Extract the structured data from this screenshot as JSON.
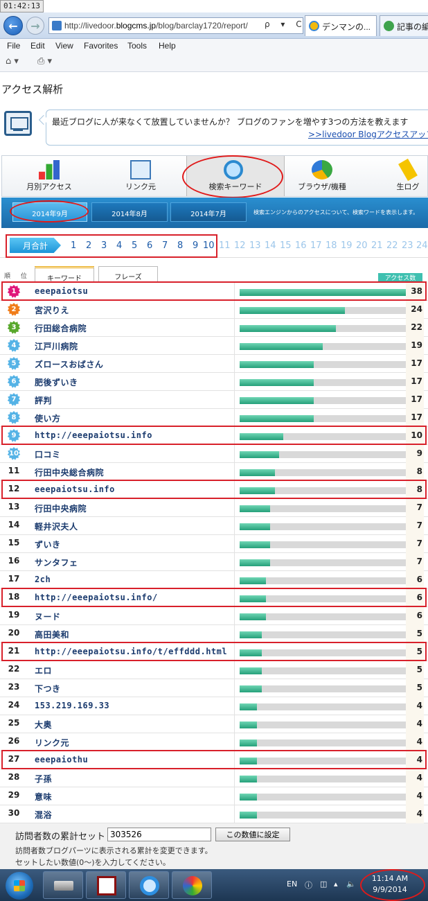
{
  "screen": {
    "clock_overlay": "01:42:13"
  },
  "browser": {
    "url_prefix": "http://livedoor.",
    "url_domain": "blogcms.jp",
    "url_path": "/blog/barclay1720/report/",
    "url_tools": "ρ ▾ C",
    "tabs": [
      "デンマンの...",
      "記事の編"
    ],
    "menu": [
      "File",
      "Edit",
      "View",
      "Favorites",
      "Tools",
      "Help"
    ],
    "toolbar": [
      "home-icon",
      "print-icon"
    ]
  },
  "page": {
    "title": "アクセス解析",
    "promo": {
      "line1": "最近ブログに人が来なくて放置していませんか？ ブログのファンを増やす3つの方法を教えます",
      "link": ">>livedoor Blogアクセスアップ到"
    },
    "nav_tabs": [
      "月別アクセス",
      "リンク元",
      "検索キーワード",
      "ブラウザ/機種",
      "生ログ"
    ],
    "months": [
      "2014年9月",
      "2014年8月",
      "2014年7月"
    ],
    "months_note": "検索エンジンからのアクセスについて、検索ワードを表示します。",
    "day_sum_label": "月合計",
    "days": [
      "1",
      "2",
      "3",
      "4",
      "5",
      "6",
      "7",
      "8",
      "9",
      "10",
      "11",
      "12",
      "13",
      "14",
      "15",
      "16",
      "17",
      "18",
      "19",
      "20",
      "21",
      "22",
      "23",
      "24"
    ],
    "rank_header": "順 位",
    "keyword_tab": "キーワード",
    "phrase_tab": "フレーズ",
    "access_header": "アクセス数",
    "counter": {
      "label": "訪問者数の累計セット",
      "value": "303526",
      "button": "この数値に設定",
      "hint1": "訪問者数ブログパーツに表示される累計を変更できます。",
      "hint2": "セットしたい数値(0〜)を入力してください。"
    }
  },
  "table": {
    "max": 38,
    "rows": [
      {
        "rank": "1",
        "kw": "eeepaiotsu",
        "n": 38,
        "hl": true,
        "medal": "#e0177a"
      },
      {
        "rank": "2",
        "kw": "宮沢りえ",
        "n": 24,
        "medal": "#f07d1a"
      },
      {
        "rank": "3",
        "kw": "行田総合病院",
        "n": 22,
        "medal": "#58a82c"
      },
      {
        "rank": "4",
        "kw": "江戸川病院",
        "n": 19,
        "medal": "#55b3e6"
      },
      {
        "rank": "5",
        "kw": "ズロースおばさん",
        "n": 17,
        "medal": "#55b3e6"
      },
      {
        "rank": "6",
        "kw": "肥後ずいき",
        "n": 17,
        "medal": "#55b3e6"
      },
      {
        "rank": "7",
        "kw": "評判",
        "n": 17,
        "medal": "#55b3e6"
      },
      {
        "rank": "8",
        "kw": "使い方",
        "n": 17,
        "medal": "#55b3e6"
      },
      {
        "rank": "9",
        "kw": "http://eeepaiotsu.info",
        "n": 10,
        "hl": true,
        "medal": "#55b3e6"
      },
      {
        "rank": "10",
        "kw": "口コミ",
        "n": 9,
        "medal": "#55b3e6"
      },
      {
        "rank": "11",
        "kw": "行田中央総合病院",
        "n": 8
      },
      {
        "rank": "12",
        "kw": "eeepaiotsu.info",
        "n": 8,
        "hl": true
      },
      {
        "rank": "13",
        "kw": "行田中央病院",
        "n": 7
      },
      {
        "rank": "14",
        "kw": "軽井沢夫人",
        "n": 7
      },
      {
        "rank": "15",
        "kw": "ずいき",
        "n": 7
      },
      {
        "rank": "16",
        "kw": "サンタフェ",
        "n": 7
      },
      {
        "rank": "17",
        "kw": "2ch",
        "n": 6
      },
      {
        "rank": "18",
        "kw": "http://eeepaiotsu.info/",
        "n": 6,
        "hl": true
      },
      {
        "rank": "19",
        "kw": "ヌード",
        "n": 6
      },
      {
        "rank": "20",
        "kw": "高田美和",
        "n": 5
      },
      {
        "rank": "21",
        "kw": "http://eeepaiotsu.info/t/effddd.html",
        "n": 5,
        "hl": true
      },
      {
        "rank": "22",
        "kw": "エロ",
        "n": 5
      },
      {
        "rank": "23",
        "kw": "下つき",
        "n": 5
      },
      {
        "rank": "24",
        "kw": "153.219.169.33",
        "n": 4
      },
      {
        "rank": "25",
        "kw": "大奥",
        "n": 4
      },
      {
        "rank": "26",
        "kw": "リンク元",
        "n": 4
      },
      {
        "rank": "27",
        "kw": "eeepaiothu",
        "n": 4,
        "hl": true
      },
      {
        "rank": "28",
        "kw": "子孫",
        "n": 4
      },
      {
        "rank": "29",
        "kw": "意味",
        "n": 4
      },
      {
        "rank": "30",
        "kw": "混浴",
        "n": 4
      }
    ]
  },
  "taskbar": {
    "lang": "EN",
    "time": "11:14 AM",
    "date": "9/9/2014"
  }
}
